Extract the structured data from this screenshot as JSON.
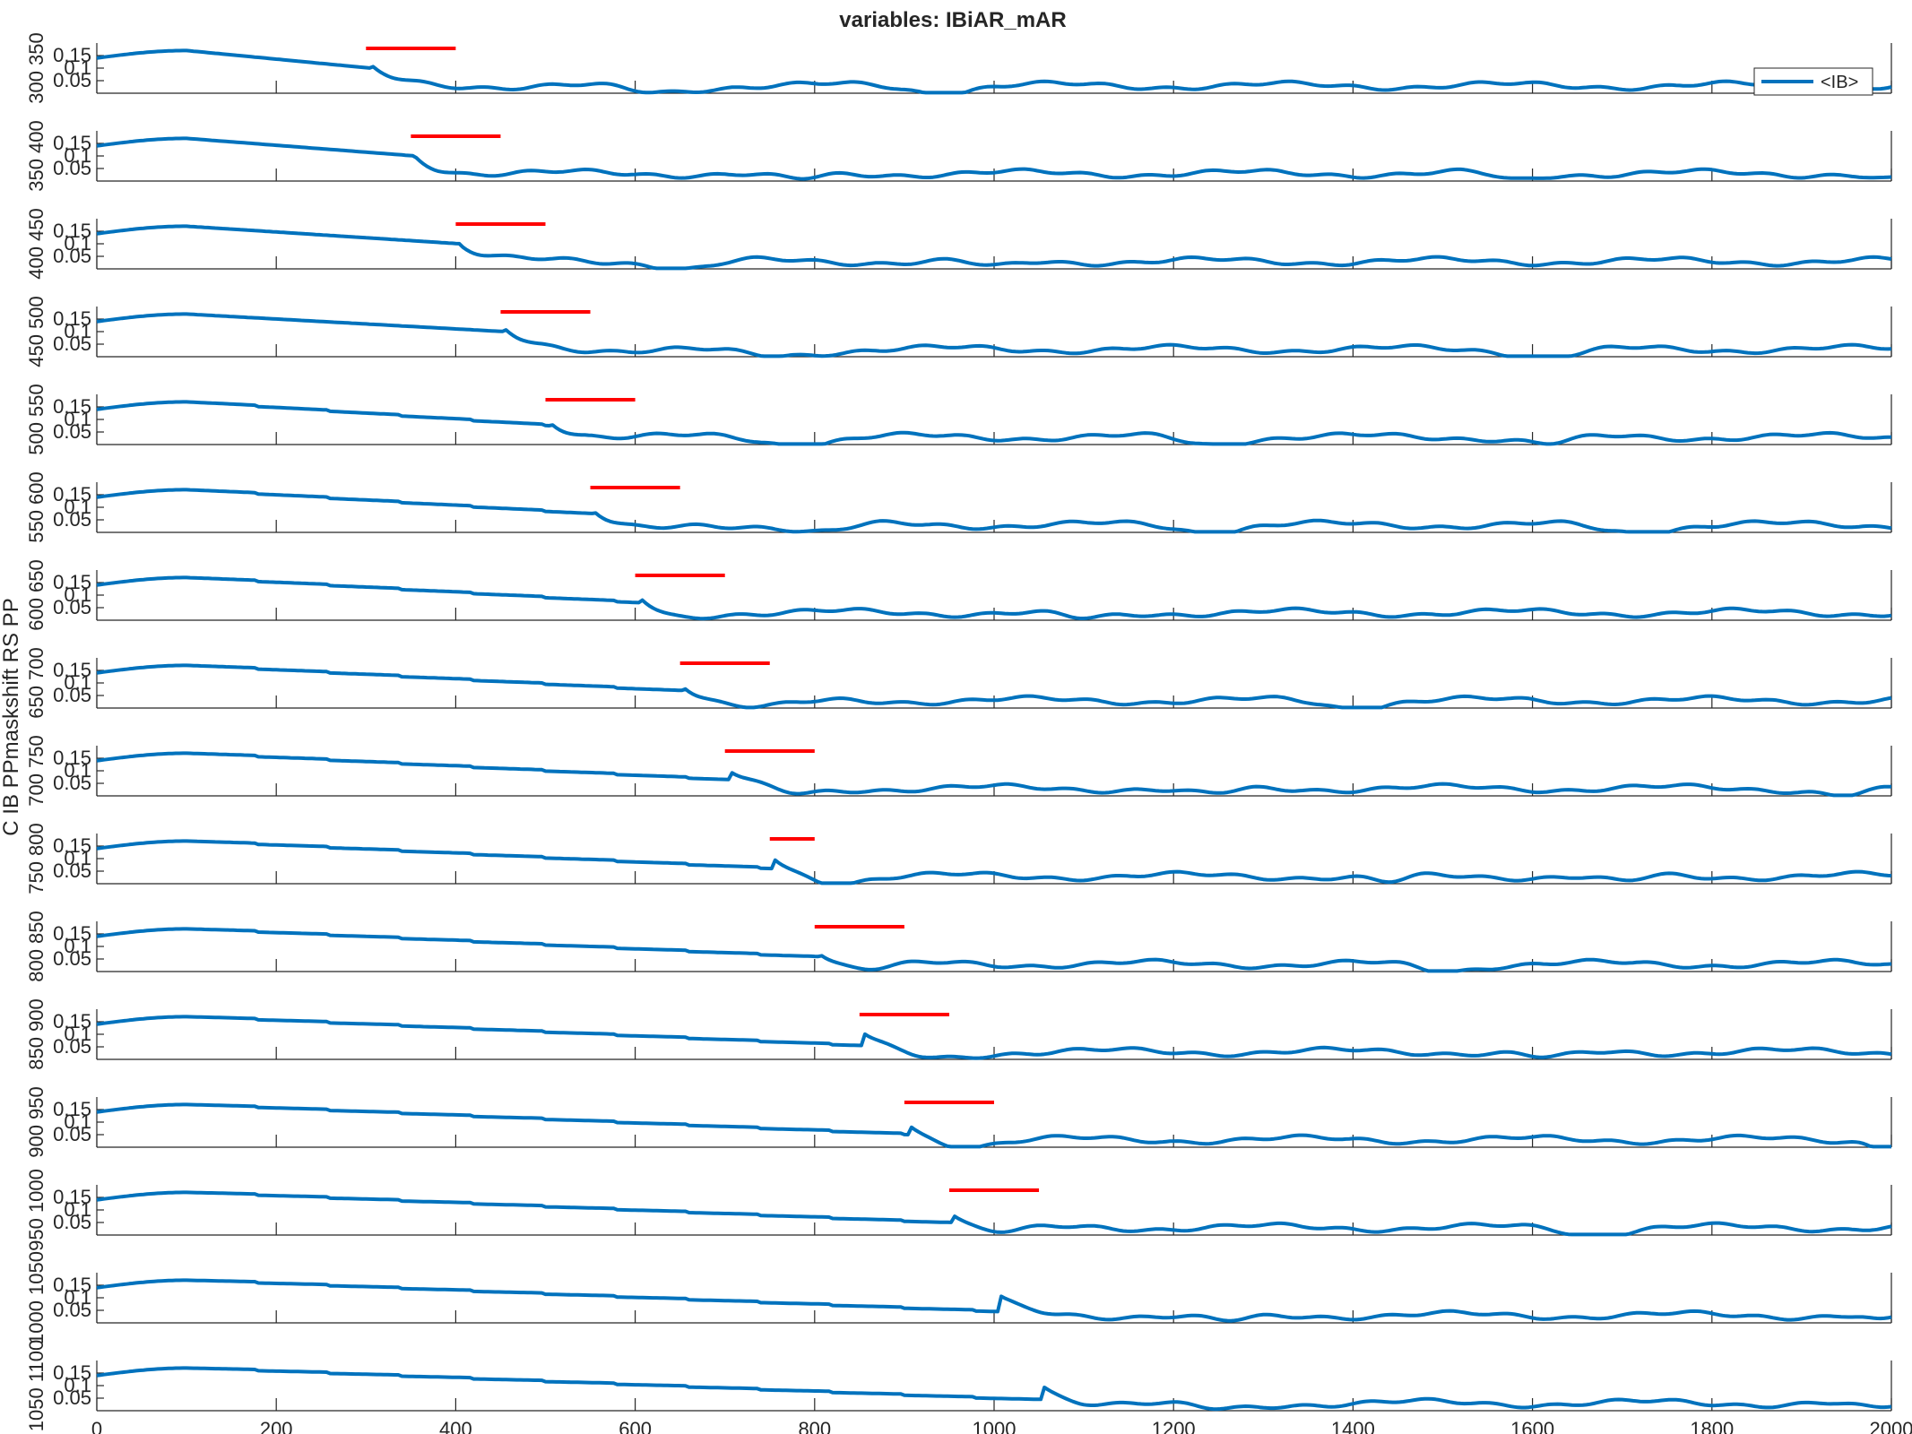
{
  "chart_data": {
    "type": "line",
    "title": "variables: IBiAR_mAR",
    "ylabel": "C IB PPmaskshift RS PP",
    "legend": {
      "label": "<IB>",
      "placement": "top-right",
      "color": "#0072BD"
    },
    "xlim": [
      0,
      2000
    ],
    "ylim": [
      0,
      0.2
    ],
    "xticks": [
      0,
      200,
      400,
      600,
      800,
      1000,
      1200,
      1400,
      1600,
      1800,
      2000
    ],
    "yticks": [
      0.05,
      0.1,
      0.15
    ],
    "ytick_labels": [
      "0.05",
      "0.1",
      "0.15"
    ],
    "line_color": "#0072BD",
    "marker_color": "#FF0000",
    "panel_ylabels": [
      "300 350",
      "350 400",
      "400 450",
      "450 500",
      "500 550",
      "550 600",
      "600 650",
      "650 700",
      "700 750",
      "750 800",
      "800 850",
      "850 900",
      "900 950",
      "950 1000",
      "1000 1050",
      "1050 1100"
    ],
    "panels": [
      {
        "marker": [
          300,
          400
        ],
        "drop": 305,
        "dips": [
          [
            620,
            50
          ],
          [
            940,
            40
          ]
        ]
      },
      {
        "marker": [
          350,
          450
        ],
        "drop": 355,
        "dips": [
          [
            780,
            40
          ],
          [
            1580,
            30
          ],
          [
            2000,
            30
          ]
        ]
      },
      {
        "marker": [
          400,
          500
        ],
        "drop": 405,
        "dips": [
          [
            660,
            40
          ],
          [
            1000,
            30
          ]
        ]
      },
      {
        "marker": [
          450,
          550
        ],
        "drop": 455,
        "dips": [
          [
            750,
            60
          ],
          [
            1620,
            50
          ]
        ]
      },
      {
        "marker": [
          500,
          600
        ],
        "drop": 505,
        "dips": [
          [
            780,
            50
          ],
          [
            1240,
            40
          ],
          [
            1620,
            40
          ]
        ]
      },
      {
        "marker": [
          550,
          650
        ],
        "drop": 555,
        "dips": [
          [
            600,
            60
          ],
          [
            810,
            40
          ],
          [
            1240,
            40
          ],
          [
            1710,
            50
          ]
        ]
      },
      {
        "marker": [
          600,
          700
        ],
        "drop": 605,
        "dips": [
          [
            640,
            40
          ],
          [
            1100,
            40
          ]
        ]
      },
      {
        "marker": [
          650,
          750
        ],
        "drop": 655,
        "dips": [
          [
            740,
            60
          ],
          [
            1400,
            40
          ]
        ]
      },
      {
        "marker": [
          700,
          800
        ],
        "drop": 705,
        "dips": [
          [
            780,
            40
          ],
          [
            1240,
            40
          ],
          [
            1950,
            40
          ]
        ]
      },
      {
        "marker": [
          750,
          800
        ],
        "drop": 755,
        "dips": [
          [
            820,
            40
          ],
          [
            1440,
            30
          ],
          [
            1700,
            30
          ]
        ]
      },
      {
        "marker": [
          800,
          900
        ],
        "drop": 805,
        "dips": [
          [
            850,
            50
          ],
          [
            1500,
            40
          ]
        ]
      },
      {
        "marker": [
          850,
          950
        ],
        "drop": 855,
        "dips": [
          [
            930,
            50
          ],
          [
            1620,
            40
          ]
        ]
      },
      {
        "marker": [
          900,
          1000
        ],
        "drop": 905,
        "dips": [
          [
            960,
            50
          ],
          [
            1990,
            20
          ]
        ]
      },
      {
        "marker": [
          950,
          1050
        ],
        "drop": 955,
        "dips": [
          [
            1000,
            50
          ],
          [
            1670,
            40
          ]
        ]
      },
      {
        "marker": null,
        "drop": 1005,
        "dips": [
          [
            1260,
            40
          ],
          [
            1990,
            20
          ]
        ]
      },
      {
        "marker": null,
        "drop": 1055,
        "dips": [
          [
            1250,
            50
          ],
          [
            1980,
            30
          ]
        ]
      }
    ]
  }
}
